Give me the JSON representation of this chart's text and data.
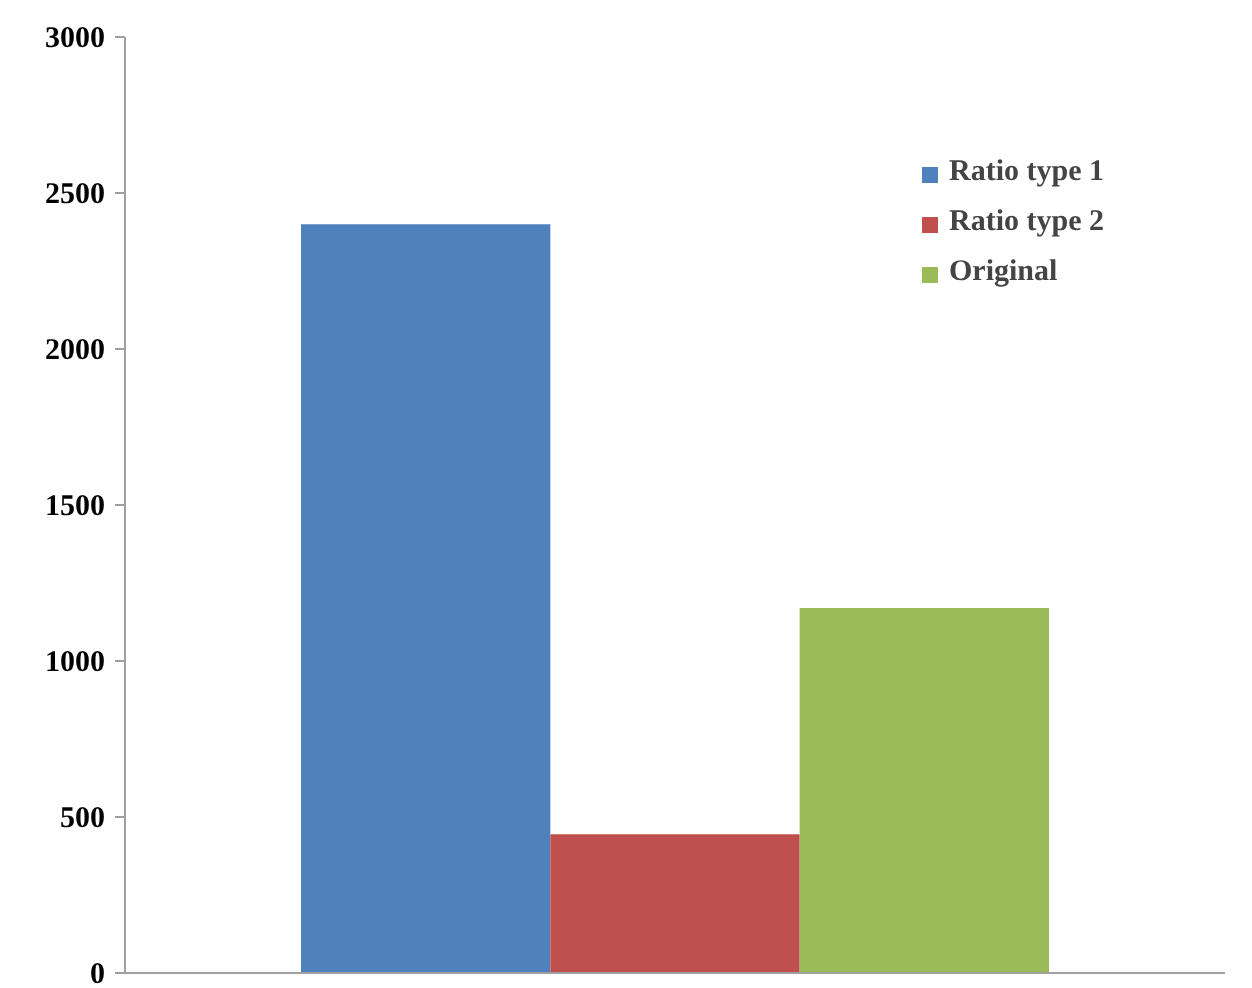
{
  "chart_data": {
    "type": "bar",
    "categories": [
      null
    ],
    "series": [
      {
        "name": "Ratio type 1",
        "color": "#4f81bd",
        "values": [
          2400
        ]
      },
      {
        "name": "Ratio type 2",
        "color": "#c0504d",
        "values": [
          445
        ]
      },
      {
        "name": "Original",
        "color": "#9bbb59",
        "values": [
          1170
        ]
      }
    ],
    "ylim": [
      0,
      3000
    ],
    "yticks": [
      0,
      500,
      1000,
      1500,
      2000,
      2500,
      3000
    ],
    "grid": false,
    "legend": "top right"
  }
}
